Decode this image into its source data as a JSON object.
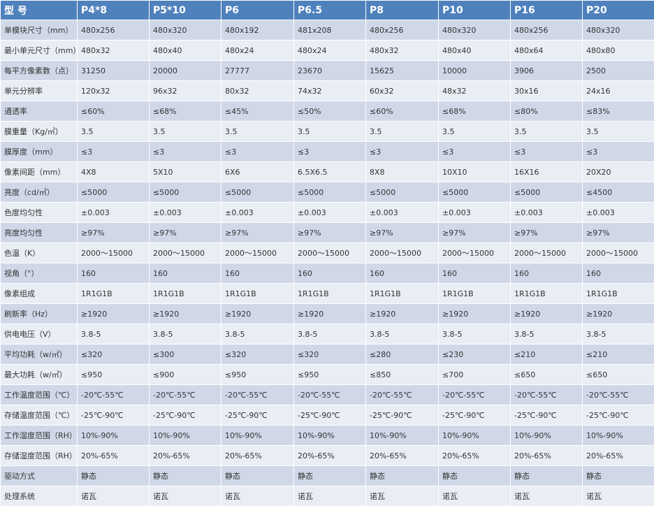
{
  "table": {
    "header": [
      "型 号",
      "P4*8",
      "P5*10",
      "P6",
      "P6.5",
      "P8",
      "P10",
      "P16",
      "P20"
    ],
    "rows": [
      [
        "单模块尺寸（mm）",
        "480x256",
        "480x320",
        "480x192",
        "481x208",
        "480x256",
        "480x320",
        "480x256",
        "480x320"
      ],
      [
        "最小单元尺寸（mm）",
        "480x32",
        "480x40",
        "480x24",
        "480x24",
        "480x32",
        "480x40",
        "480x64",
        "480x80"
      ],
      [
        "每平方像素数（点）",
        "31250",
        "20000",
        "27777",
        "23670",
        "15625",
        "10000",
        "3906",
        "2500"
      ],
      [
        "单元分辨率",
        "120x32",
        "96x32",
        "80x32",
        "74x32",
        "60x32",
        "48x32",
        "30x16",
        "24x16"
      ],
      [
        "通透率",
        "≤60%",
        "≤68%",
        "≤45%",
        "≤50%",
        "≤60%",
        "≤68%",
        "≤80%",
        "≤83%"
      ],
      [
        "膜重量（Kg/㎡）",
        "3.5",
        "3.5",
        "3.5",
        "3.5",
        "3.5",
        "3.5",
        "3.5",
        "3.5"
      ],
      [
        "膜厚度（mm）",
        "≤3",
        "≤3",
        "≤3",
        "≤3",
        "≤3",
        "≤3",
        "≤3",
        "≤3"
      ],
      [
        "像素间距（mm）",
        "4X8",
        "5X10",
        "6X6",
        "6.5X6.5",
        "8X8",
        "10X10",
        "16X16",
        "20X20"
      ],
      [
        "亮度（cd/㎡）",
        "≤5000",
        "≤5000",
        "≤5000",
        "≤5000",
        "≤5000",
        "≤5000",
        "≤5000",
        "≤4500"
      ],
      [
        "色度均匀性",
        "±0.003",
        "±0.003",
        "±0.003",
        "±0.003",
        "±0.003",
        "±0.003",
        "±0.003",
        "±0.003"
      ],
      [
        "亮度均匀性",
        "≥97%",
        "≥97%",
        "≥97%",
        "≥97%",
        "≥97%",
        "≥97%",
        "≥97%",
        "≥97%"
      ],
      [
        "色温（K）",
        "2000～15000",
        "2000～15000",
        "2000～15000",
        "2000～15000",
        "2000～15000",
        "2000～15000",
        "2000～15000",
        "2000～15000"
      ],
      [
        "视角（°）",
        "160",
        "160",
        "160",
        "160",
        "160",
        "160",
        "160",
        "160"
      ],
      [
        "像素组成",
        "1R1G1B",
        "1R1G1B",
        "1R1G1B",
        "1R1G1B",
        "1R1G1B",
        "1R1G1B",
        "1R1G1B",
        "1R1G1B"
      ],
      [
        "刷新率（Hz）",
        "≥1920",
        "≥1920",
        "≥1920",
        "≥1920",
        "≥1920",
        "≥1920",
        "≥1920",
        "≥1920"
      ],
      [
        "供电电压（V）",
        "3.8-5",
        "3.8-5",
        "3.8-5",
        "3.8-5",
        "3.8-5",
        "3.8-5",
        "3.8-5",
        "3.8-5"
      ],
      [
        "平均功耗（w/㎡）",
        "≤320",
        "≤300",
        "≤320",
        "≤320",
        "≤280",
        "≤230",
        "≤210",
        "≤210"
      ],
      [
        "最大功耗（w/㎡）",
        "≤950",
        "≤900",
        "≤950",
        "≤950",
        "≤850",
        "≤700",
        "≤650",
        "≤650"
      ],
      [
        "工作温度范围（℃）",
        "-20℃-55℃",
        "-20℃-55℃",
        "-20℃-55℃",
        "-20℃-55℃",
        "-20℃-55℃",
        "-20℃-55℃",
        "-20℃-55℃",
        "-20℃-55℃"
      ],
      [
        "存储温度范围（℃）",
        "-25℃-90℃",
        "-25℃-90℃",
        "-25℃-90℃",
        "-25℃-90℃",
        "-25℃-90℃",
        "-25℃-90℃",
        "-25℃-90℃",
        "-25℃-90℃"
      ],
      [
        "工作湿度范围（RH）",
        "10%-90%",
        "10%-90%",
        "10%-90%",
        "10%-90%",
        "10%-90%",
        "10%-90%",
        "10%-90%",
        "10%-90%"
      ],
      [
        "存储湿度范围（RH）",
        "20%-65%",
        "20%-65%",
        "20%-65%",
        "20%-65%",
        "20%-65%",
        "20%-65%",
        "20%-65%",
        "20%-65%"
      ],
      [
        "驱动方式",
        "静态",
        "静态",
        "静态",
        "静态",
        "静态",
        "静态",
        "静态",
        "静态"
      ],
      [
        "处理系统",
        "诺瓦",
        "诺瓦",
        "诺瓦",
        "诺瓦",
        "诺瓦",
        "诺瓦",
        "诺瓦",
        "诺瓦"
      ]
    ]
  }
}
